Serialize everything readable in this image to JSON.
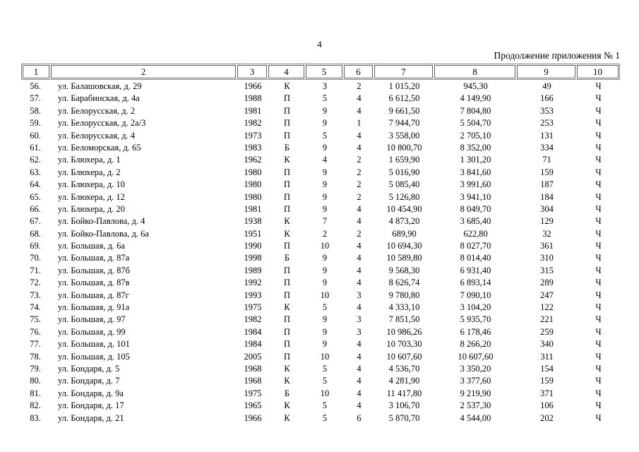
{
  "page": {
    "number": "4",
    "continuation_label": "Продолжение приложения № 1"
  },
  "table": {
    "columns": [
      "1",
      "2",
      "3",
      "4",
      "5",
      "6",
      "7",
      "8",
      "9",
      "10"
    ],
    "rows": [
      [
        "56.",
        "ул. Балашовская, д. 29",
        "1966",
        "К",
        "3",
        "2",
        "1 015,20",
        "945,30",
        "49",
        "Ч"
      ],
      [
        "57.",
        "ул. Барабинская, д. 4а",
        "1988",
        "П",
        "5",
        "4",
        "6 612,50",
        "4 149,90",
        "166",
        "Ч"
      ],
      [
        "58.",
        "ул. Белорусская, д. 2",
        "1981",
        "П",
        "9",
        "4",
        "9 661,50",
        "7 804,80",
        "353",
        "Ч"
      ],
      [
        "59.",
        "ул. Белорусская, д. 2а/3",
        "1982",
        "П",
        "9",
        "1",
        "7 944,70",
        "5 504,70",
        "253",
        "Ч"
      ],
      [
        "60.",
        "ул. Белорусская, д. 4",
        "1973",
        "П",
        "5",
        "4",
        "3 558,00",
        "2 705,10",
        "131",
        "Ч"
      ],
      [
        "61.",
        "ул. Беломорская, д. 65",
        "1983",
        "Б",
        "9",
        "4",
        "10 800,70",
        "8 352,00",
        "334",
        "Ч"
      ],
      [
        "62.",
        "ул. Блюхера, д. 1",
        "1962",
        "К",
        "4",
        "2",
        "1 659,90",
        "1 301,20",
        "71",
        "Ч"
      ],
      [
        "63.",
        "ул. Блюхера, д. 2",
        "1980",
        "П",
        "9",
        "2",
        "5 016,90",
        "3 841,60",
        "159",
        "Ч"
      ],
      [
        "64.",
        "ул. Блюхера, д. 10",
        "1980",
        "П",
        "9",
        "2",
        "5 085,40",
        "3 991,60",
        "187",
        "Ч"
      ],
      [
        "65.",
        "ул. Блюхера, д. 12",
        "1980",
        "П",
        "9",
        "2",
        "5 126,80",
        "3 941,10",
        "184",
        "Ч"
      ],
      [
        "66.",
        "ул. Блюхера, д. 20",
        "1981",
        "П",
        "9",
        "4",
        "10 454,90",
        "8 049,70",
        "304",
        "Ч"
      ],
      [
        "67.",
        "ул. Бойко-Павлова, д. 4",
        "1938",
        "К",
        "7",
        "4",
        "4 873,20",
        "3 685,40",
        "129",
        "Ч"
      ],
      [
        "68.",
        "ул. Бойко-Павлова, д. 6а",
        "1951",
        "К",
        "2",
        "2",
        "689,90",
        "622,80",
        "32",
        "Ч"
      ],
      [
        "69.",
        "ул. Большая, д. 6а",
        "1990",
        "П",
        "10",
        "4",
        "10 694,30",
        "8 027,70",
        "361",
        "Ч"
      ],
      [
        "70.",
        "ул. Большая, д. 87а",
        "1998",
        "Б",
        "9",
        "4",
        "10 589,80",
        "8 014,40",
        "310",
        "Ч"
      ],
      [
        "71.",
        "ул. Большая, д. 87б",
        "1989",
        "П",
        "9",
        "4",
        "9 568,30",
        "6 931,40",
        "315",
        "Ч"
      ],
      [
        "72.",
        "ул. Большая, д. 87в",
        "1992",
        "П",
        "9",
        "4",
        "8 626,74",
        "6 893,14",
        "289",
        "Ч"
      ],
      [
        "73.",
        "ул. Большая, д. 87г",
        "1993",
        "П",
        "10",
        "3",
        "9 780,80",
        "7 090,10",
        "247",
        "Ч"
      ],
      [
        "74.",
        "ул. Большая, д. 91а",
        "1975",
        "К",
        "5",
        "4",
        "4 333,10",
        "3 104,20",
        "122",
        "Ч"
      ],
      [
        "75.",
        "ул. Большая, д. 97",
        "1982",
        "П",
        "9",
        "3",
        "7 851,50",
        "5 935,70",
        "221",
        "Ч"
      ],
      [
        "76.",
        "ул. Большая, д. 99",
        "1984",
        "П",
        "9",
        "3",
        "10 986,26",
        "6 178,46",
        "259",
        "Ч"
      ],
      [
        "77.",
        "ул. Большая, д. 101",
        "1984",
        "П",
        "9",
        "4",
        "10 703,30",
        "8 266,20",
        "340",
        "Ч"
      ],
      [
        "78.",
        "ул. Большая, д. 105",
        "2005",
        "П",
        "10",
        "4",
        "10 607,60",
        "10 607,60",
        "311",
        "Ч"
      ],
      [
        "79.",
        "ул. Бондаря, д. 5",
        "1968",
        "К",
        "5",
        "4",
        "4 536,70",
        "3 350,20",
        "154",
        "Ч"
      ],
      [
        "80.",
        "ул. Бондаря, д. 7",
        "1968",
        "К",
        "5",
        "4",
        "4 281,90",
        "3 377,60",
        "159",
        "Ч"
      ],
      [
        "81.",
        "ул. Бондаря, д. 9а",
        "1975",
        "Б",
        "10",
        "4",
        "11 417,80",
        "9 219,90",
        "371",
        "Ч"
      ],
      [
        "82.",
        "ул. Бондаря, д. 17",
        "1965",
        "К",
        "5",
        "4",
        "3 106,70",
        "2 537,30",
        "106",
        "Ч"
      ],
      [
        "83.",
        "ул. Бондаря, д. 21",
        "1966",
        "К",
        "5",
        "6",
        "5 870,70",
        "4 544,00",
        "202",
        "Ч"
      ]
    ]
  }
}
